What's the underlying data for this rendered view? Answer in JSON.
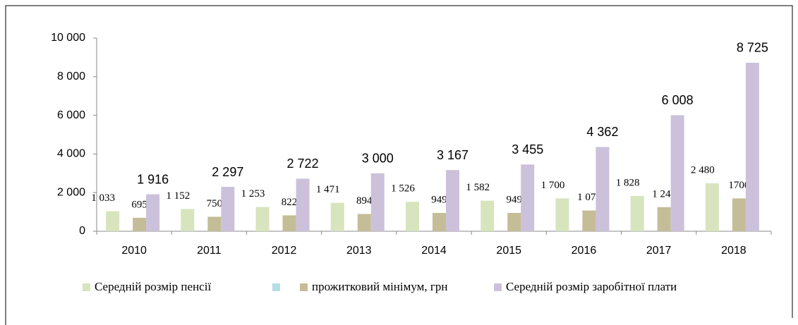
{
  "chart_data": {
    "type": "bar",
    "categories": [
      "2010",
      "2011",
      "2012",
      "2013",
      "2014",
      "2015",
      "2016",
      "2017",
      "2018"
    ],
    "series": [
      {
        "name": "Середній розмір пенсії",
        "color": "#d7e4bd",
        "values": [
          1033,
          1152,
          1253,
          1471,
          1526,
          1582,
          1700,
          1828,
          2480
        ],
        "value_labels": [
          "1 033",
          "1 152",
          "1 253",
          "1 471",
          "1 526",
          "1 582",
          "1 700",
          "1 828",
          "2 480"
        ]
      },
      {
        "name": "прожитковий мінімум, грн",
        "color": "#c4bd97",
        "values": [
          695,
          750,
          822,
          894,
          949,
          949,
          1074,
          1247,
          1700
        ],
        "value_labels": [
          "695",
          "750",
          "822",
          "894",
          "949",
          "949",
          "1 074",
          "1 247",
          "1700"
        ]
      },
      {
        "name": "Середній розмір заробітної плати",
        "color": "#ccc1da",
        "values": [
          1916,
          2297,
          2722,
          3000,
          3167,
          3455,
          4362,
          6008,
          8725
        ],
        "value_labels": [
          "1 916",
          "2 297",
          "2 722",
          "3 000",
          "3 167",
          "3 455",
          "4 362",
          "6 008",
          "8 725"
        ]
      }
    ],
    "ylim": [
      0,
      10000
    ],
    "yticks": [
      0,
      {
        "value": 2000,
        "label": "2 000"
      },
      {
        "value": 4000,
        "label": "4 000"
      },
      {
        "value": 6000,
        "label": "6 000"
      },
      {
        "value": 8000,
        "label": "8 000"
      },
      {
        "value": 10000,
        "label": "10 000"
      }
    ],
    "grid": false
  }
}
